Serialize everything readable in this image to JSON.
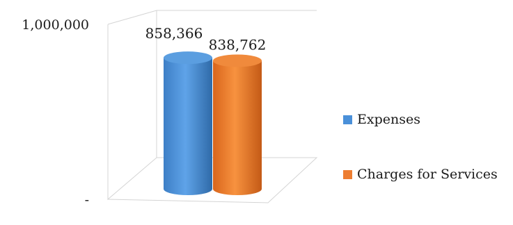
{
  "chart_data": {
    "type": "bar",
    "style": "3d-cylinder",
    "categories": [
      ""
    ],
    "series": [
      {
        "name": "Expenses",
        "values": [
          858366
        ],
        "label": "858,366",
        "color": "#4a90d9"
      },
      {
        "name": "Charges for Services",
        "values": [
          838762
        ],
        "label": "838,762",
        "color": "#ed7d31"
      }
    ],
    "ylim": [
      0,
      1000000
    ],
    "y_ticks": [
      {
        "value": 0,
        "label": "-"
      },
      {
        "value": 1000000,
        "label": "1,000,000"
      }
    ],
    "grid": false,
    "legend_position": "right"
  }
}
